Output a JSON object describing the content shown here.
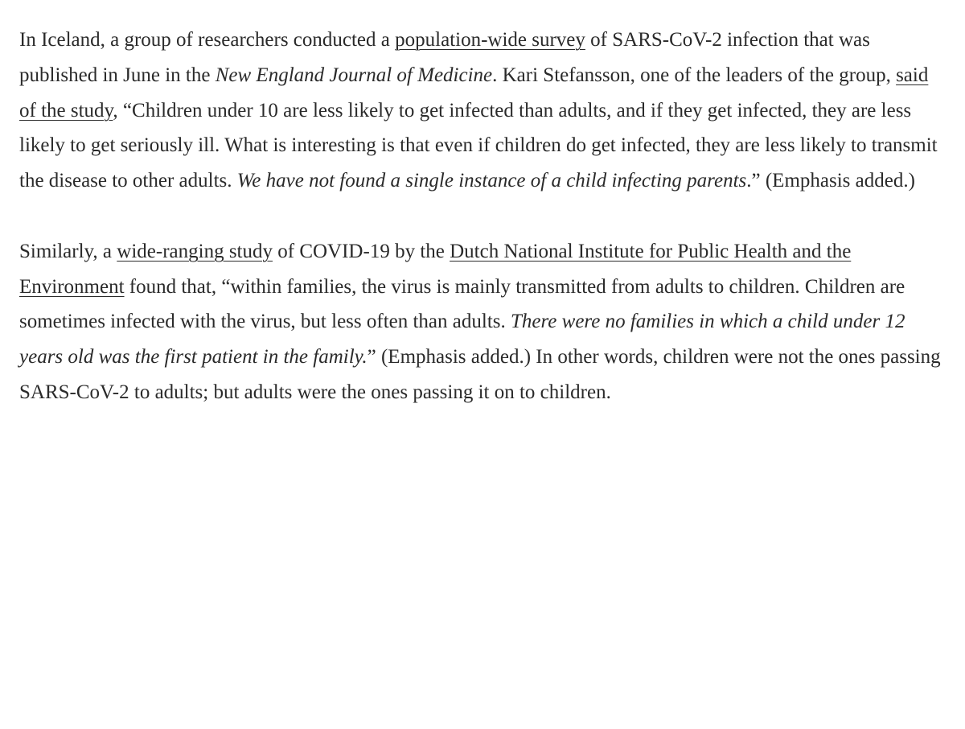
{
  "text_color": "#2a2a2a",
  "background_color": "#ffffff",
  "font_family": "Georgia, serif",
  "font_size": 25,
  "line_height": 1.75,
  "p1": {
    "t1": "In Iceland, a group of researchers conducted a ",
    "link1": "population-wide survey",
    "t2": " of SARS-CoV-2 infection that was published in June in the ",
    "italic1": "New England Journal of Medicine",
    "t3": ". Kari Stefansson, one of the leaders of the group, ",
    "link2": "said of the study",
    "t4": ", “Children under 10 are less likely to get infected than adults, and if they get infected, they are less likely to get seriously ill. What is interesting is that even if children do get infected, they are less likely to transmit the disease to other adults. ",
    "italic2": "We have not found a single instance of a child infecting parents",
    "t5": ".” (Emphasis added.)"
  },
  "p2": {
    "t1": "Similarly, a ",
    "link1": "wide-ranging study",
    "t2": " of COVID-19 by the ",
    "link2": "Dutch National Institute for Public Health and the Environment",
    "t3": " found that, “within families, the virus is mainly transmitted from adults to children. Children are sometimes infected with the virus, but less often than adults. ",
    "italic1": "There were no families in which a child under 12 years old was the first patient in the family.",
    "t4": "” (Emphasis added.) In other words, children were not the ones passing SARS-CoV-2 to adults; but adults were the ones passing it on to children."
  }
}
